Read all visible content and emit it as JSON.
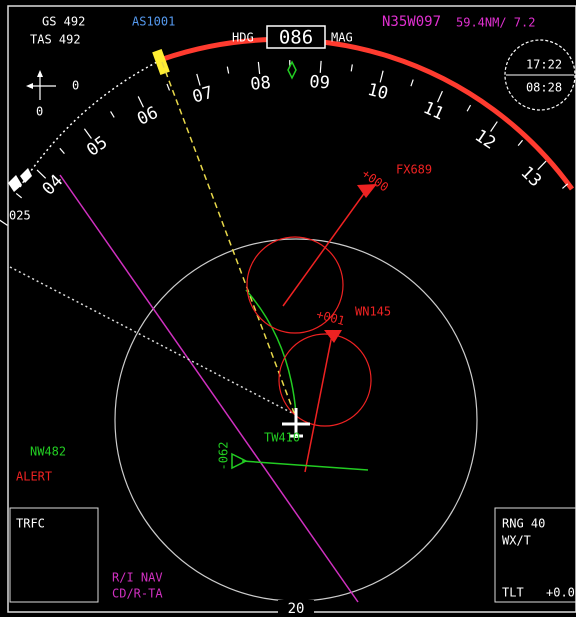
{
  "top_left": {
    "gs": "GS 492",
    "tas": "TAS 492"
  },
  "flight_id": "AS1001",
  "heading": {
    "label": "HDG",
    "value": "086",
    "ref": "MAG"
  },
  "position": {
    "coords": "N35W097",
    "distance": "59.4NM/ 7.2"
  },
  "clock": {
    "top": "17:22",
    "bottom": "08:28"
  },
  "north_indicator": {
    "right": "0",
    "bottom": "0"
  },
  "compass_labels": [
    "04",
    "05",
    "06",
    "07",
    "08",
    "09",
    "10",
    "11",
    "12",
    "13"
  ],
  "bearing_label": "025",
  "traffic": [
    {
      "id": "FX689",
      "alt": "+000"
    },
    {
      "id": "WN145",
      "alt": "+001"
    },
    {
      "id": "TW410"
    },
    {
      "id": "NW482",
      "alt": "-062"
    }
  ],
  "alert": "ALERT",
  "left_box": {
    "title": "TRFC"
  },
  "modes": [
    "R/I NAV",
    "CD/R-TA"
  ],
  "range_ring_label": "20",
  "right_box": {
    "range": "RNG 40",
    "mode": "WX/T",
    "tilt_label": "TLT",
    "tilt_value": "+0.0"
  }
}
